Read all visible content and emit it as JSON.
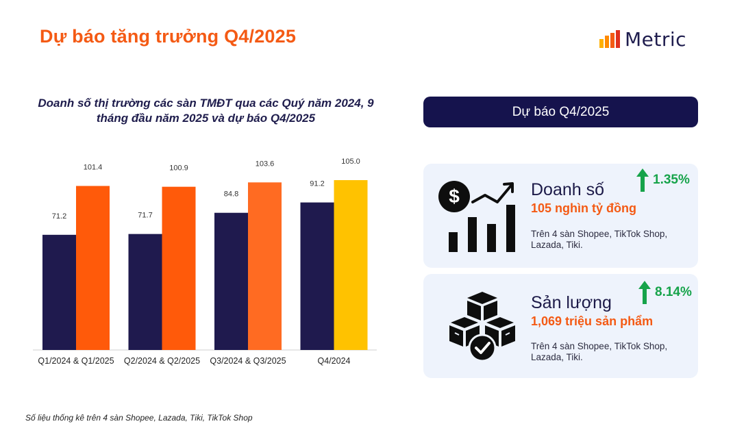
{
  "page": {
    "title": "Dự báo tăng trưởng Q4/2025",
    "brand": "Metric",
    "footnote": "Số liệu thống kê trên 4 sàn Shopee, Lazada, Tiki, TikTok Shop"
  },
  "forecast": {
    "header": "Dự báo Q4/2025",
    "revenue": {
      "title": "Doanh số",
      "value": "105 nghìn tỷ đồng",
      "description": "Trên 4 sàn Shopee, TikTok Shop, Lazada, Tiki.",
      "growth": "1.35%",
      "icon": "dollar-growth-chart-icon"
    },
    "volume": {
      "title": "Sản lượng",
      "value": "1,069 triệu sản phẩm",
      "description": "Trên 4 sàn Shopee, TikTok Shop, Lazada, Tiki.",
      "growth": "8.14%",
      "icon": "boxes-check-icon"
    }
  },
  "colors": {
    "accent_orange": "#f45a14",
    "navy": "#1f1a4e",
    "bar_2025": "#ff5a0a",
    "bar_2025_q3": "#ff6b22",
    "bar_forecast": "#ffc200",
    "growth_green": "#16a34a"
  },
  "chart_data": {
    "type": "bar",
    "title": "Doanh số thị trường các sàn TMĐT qua các Quý năm 2024, 9 tháng đầu năm 2025 và dự báo Q4/2025",
    "categories": [
      "Q1/2024 & Q1/2025",
      "Q2/2024 & Q2/2025",
      "Q3/2024 & Q3/2025",
      "Q4/2024"
    ],
    "series": [
      {
        "values": [
          71.2,
          71.7,
          84.8,
          91.2
        ],
        "colors": [
          "#1f1a4e",
          "#1f1a4e",
          "#1f1a4e",
          "#1f1a4e"
        ]
      },
      {
        "values": [
          101.4,
          100.9,
          103.6,
          105.0
        ],
        "value_labels": [
          "101.4",
          "100.9",
          "103.6",
          "105.0"
        ],
        "colors": [
          "#ff5a0a",
          "#ff5a0a",
          "#ff6b22",
          "#ffc200"
        ]
      }
    ],
    "ylim": [
      0,
      105
    ],
    "grid": false,
    "legend": "none"
  }
}
